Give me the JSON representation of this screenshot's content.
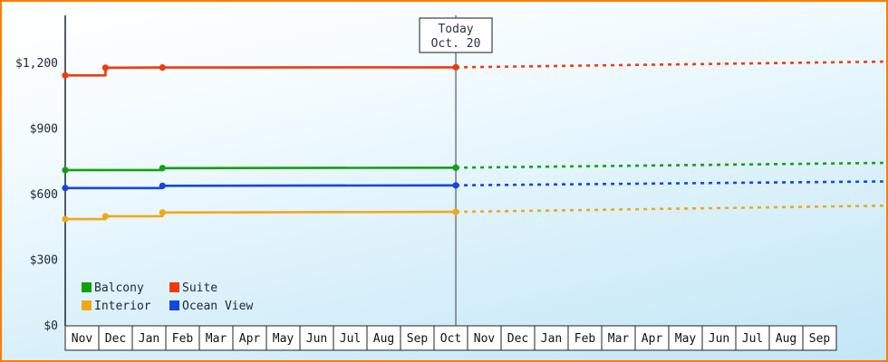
{
  "window": {
    "border_color": "#ff7d00"
  },
  "chart_data": {
    "type": "line",
    "title": "",
    "xlabel": "",
    "ylabel": "",
    "grid": false,
    "legend_position": "bottom-left-inside",
    "x_axis": {
      "months": [
        "Nov",
        "Dec",
        "Jan",
        "Feb",
        "Mar",
        "Apr",
        "May",
        "Jun",
        "Jul",
        "Aug",
        "Sep",
        "Oct",
        "Nov",
        "Dec",
        "Jan",
        "Feb",
        "Mar",
        "Apr",
        "May",
        "Jun",
        "Jul",
        "Aug",
        "Sep"
      ]
    },
    "y_axis": {
      "ticks": [
        {
          "label": "$0",
          "value": 0
        },
        {
          "label": "$300",
          "value": 300
        },
        {
          "label": "$600",
          "value": 600
        },
        {
          "label": "$900",
          "value": 900
        },
        {
          "label": "$1,200",
          "value": 1200
        }
      ],
      "min": 0,
      "max": 1340
    },
    "today": {
      "line1": "Today",
      "line2": "Oct. 20",
      "month_frac": 11.65
    },
    "legend": [
      {
        "label": "Balcony",
        "color": "#12a012"
      },
      {
        "label": "Suite",
        "color": "#ef3b0c"
      },
      {
        "label": "Interior",
        "color": "#f0a818"
      },
      {
        "label": "Ocean View",
        "color": "#1745e0"
      }
    ],
    "series": [
      {
        "name": "Suite",
        "color": "#ef3b0c",
        "solid_points": [
          [
            0,
            1145
          ],
          [
            1.2,
            1145
          ],
          [
            1.2,
            1180
          ],
          [
            2.9,
            1181
          ],
          [
            11.65,
            1182
          ]
        ],
        "markers": [
          [
            0,
            1145
          ],
          [
            1.2,
            1180
          ],
          [
            2.9,
            1181
          ],
          [
            11.65,
            1182
          ]
        ],
        "forecast_points": [
          [
            11.65,
            1182
          ],
          [
            24.4,
            1208
          ]
        ]
      },
      {
        "name": "Balcony",
        "color": "#12a012",
        "solid_points": [
          [
            0,
            712
          ],
          [
            2.9,
            712
          ],
          [
            2.9,
            721
          ],
          [
            11.65,
            723
          ]
        ],
        "markers": [
          [
            0,
            712
          ],
          [
            2.9,
            721
          ],
          [
            11.65,
            723
          ]
        ],
        "forecast_points": [
          [
            11.65,
            723
          ],
          [
            24.4,
            745
          ]
        ]
      },
      {
        "name": "Ocean View",
        "color": "#1745e0",
        "solid_points": [
          [
            0,
            630
          ],
          [
            2.9,
            630
          ],
          [
            2.9,
            640
          ],
          [
            11.65,
            642
          ]
        ],
        "markers": [
          [
            0,
            630
          ],
          [
            2.9,
            640
          ],
          [
            11.65,
            642
          ]
        ],
        "forecast_points": [
          [
            11.65,
            642
          ],
          [
            24.4,
            660
          ]
        ]
      },
      {
        "name": "Interior",
        "color": "#f0a818",
        "solid_points": [
          [
            0,
            488
          ],
          [
            1.2,
            488
          ],
          [
            1.2,
            501
          ],
          [
            2.9,
            501
          ],
          [
            2.9,
            518
          ],
          [
            11.65,
            521
          ]
        ],
        "markers": [
          [
            0,
            488
          ],
          [
            1.2,
            501
          ],
          [
            2.9,
            518
          ],
          [
            11.65,
            521
          ]
        ],
        "forecast_points": [
          [
            11.65,
            521
          ],
          [
            24.4,
            549
          ]
        ]
      }
    ]
  }
}
